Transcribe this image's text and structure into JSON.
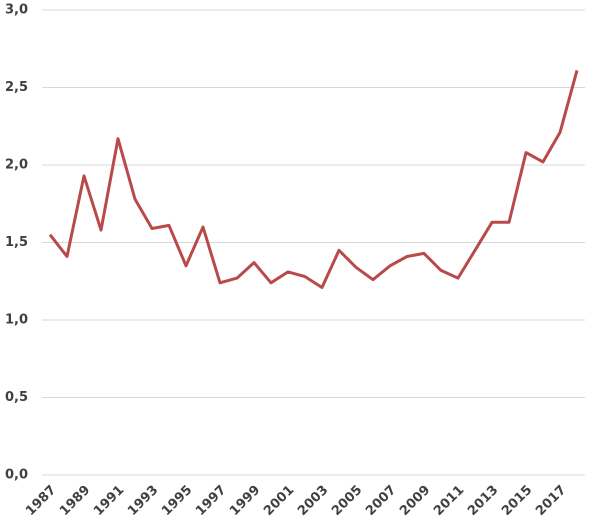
{
  "chart_data": {
    "type": "line",
    "categories": [
      "1987",
      null,
      "1989",
      null,
      "1991",
      null,
      "1993",
      null,
      "1995",
      null,
      "1997",
      null,
      "1999",
      null,
      "2001",
      null,
      "2003",
      null,
      "2005",
      null,
      "2007",
      null,
      "2009",
      null,
      "2011",
      null,
      "2013",
      null,
      "2015",
      null,
      "2017",
      null
    ],
    "series": [
      {
        "color": "#b94a4a",
        "values": [
          1.55,
          1.41,
          1.93,
          1.58,
          2.17,
          1.78,
          1.59,
          1.61,
          1.35,
          1.6,
          1.24,
          1.27,
          1.37,
          1.24,
          1.31,
          1.28,
          1.21,
          1.45,
          1.34,
          1.26,
          1.35,
          1.41,
          1.43,
          1.32,
          1.27,
          1.45,
          1.63,
          1.63,
          2.08,
          2.02,
          2.21,
          2.61
        ]
      }
    ],
    "ylim": [
      0,
      3
    ],
    "yticks": [
      {
        "value": 0,
        "label": "0,0"
      },
      {
        "value": 0.5,
        "label": "0,5"
      },
      {
        "value": 1,
        "label": "1,0"
      },
      {
        "value": 1.5,
        "label": "1,5"
      },
      {
        "value": 2,
        "label": "2,0"
      },
      {
        "value": 2.5,
        "label": "2,5"
      },
      {
        "value": 3,
        "label": "3,0"
      }
    ],
    "grid": true
  }
}
